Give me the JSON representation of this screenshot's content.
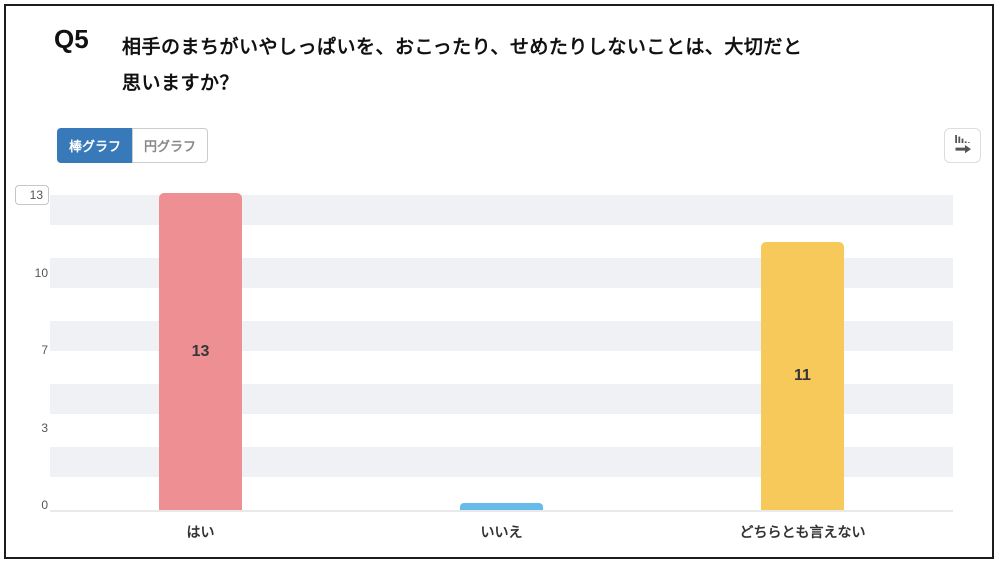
{
  "question": {
    "number": "Q5",
    "text": "相手のまちがいやしっぱいを、おこったり、せめたりしないことは、大切だと\n思いますか？"
  },
  "toolbar": {
    "tabs": [
      {
        "label": "棒グラフ",
        "active": true
      },
      {
        "label": "円グラフ",
        "active": false
      }
    ],
    "active_color": "#3879BA",
    "export_icon": "bar-chart-next-icon"
  },
  "chart_data": {
    "type": "bar",
    "title": "",
    "categories": [
      "はい",
      "いいえ",
      "どちらとも言えない"
    ],
    "values": [
      13,
      0,
      11
    ],
    "bar_value_labels": [
      "13",
      "",
      "11"
    ],
    "colors": [
      "#EE8F93",
      "#66BBEB",
      "#F7C85A"
    ],
    "ylim": [
      0,
      13
    ],
    "y_ticks": [
      "13",
      "10",
      "7",
      "3",
      "0"
    ],
    "boxed_tick": "13",
    "grid": "horizontal-stripes",
    "stripe_color": "#EFF1F4",
    "axis_line_color": "#E9E9E9",
    "legend": "none"
  }
}
